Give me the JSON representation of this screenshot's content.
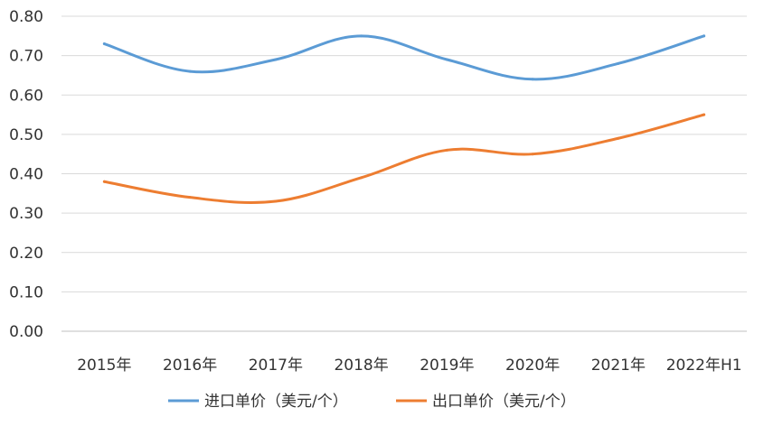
{
  "chart_data": {
    "type": "line",
    "title": "",
    "xlabel": "",
    "ylabel": "",
    "categories": [
      "2015年",
      "2016年",
      "2017年",
      "2018年",
      "2019年",
      "2020年",
      "2021年",
      "2022年H1"
    ],
    "yticks": [
      "0.00",
      "0.10",
      "0.20",
      "0.30",
      "0.40",
      "0.50",
      "0.60",
      "0.70",
      "0.80"
    ],
    "ylim": [
      0,
      0.8
    ],
    "grid": true,
    "legend_position": "bottom",
    "series": [
      {
        "name": "进口单价（美元/个）",
        "color": "#5b9bd5",
        "values": [
          0.73,
          0.66,
          0.69,
          0.75,
          0.69,
          0.64,
          0.68,
          0.75
        ]
      },
      {
        "name": "出口单价（美元/个）",
        "color": "#ed7d31",
        "values": [
          0.38,
          0.34,
          0.33,
          0.39,
          0.46,
          0.45,
          0.49,
          0.55
        ]
      }
    ]
  }
}
